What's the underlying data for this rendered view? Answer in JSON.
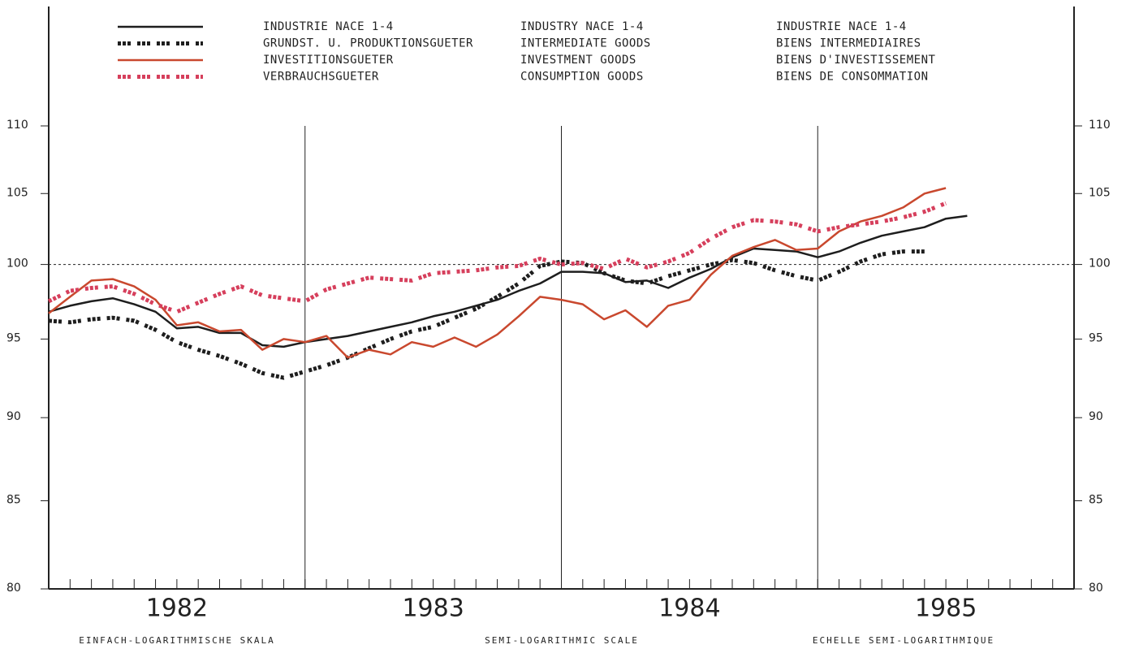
{
  "chart_data": {
    "type": "line",
    "log_scale": true,
    "ylim": [
      80,
      110
    ],
    "yticks": [
      80,
      85,
      90,
      95,
      100,
      105,
      110
    ],
    "xlim": [
      0,
      48
    ],
    "xticks": [
      1,
      2,
      3,
      4,
      5,
      6,
      7,
      8,
      9,
      10,
      11,
      12,
      13,
      14,
      15,
      16,
      17,
      18,
      19,
      20,
      21,
      22,
      23,
      24,
      25,
      26,
      27,
      28,
      29,
      30,
      31,
      32,
      33,
      34,
      35,
      36,
      37,
      38,
      39,
      40,
      41,
      42,
      43,
      44,
      45,
      46,
      47
    ],
    "year_dividers": [
      12,
      24,
      36
    ],
    "year_labels": [
      {
        "value": 6,
        "label": "1982"
      },
      {
        "value": 18,
        "label": "1983"
      },
      {
        "value": 30,
        "label": "1984"
      },
      {
        "value": 42,
        "label": "1985"
      }
    ],
    "reference_line": 100,
    "footer": [
      "EINFACH-LOGARITHMISCHE SKALA",
      "SEMI-LOGARITHMIC SCALE",
      "ECHELLE SEMI-LOGARITHMIQUE"
    ],
    "series": [
      {
        "name": "INDUSTRIE NACE 1-4",
        "name_en": "INDUSTRY NACE 1-4",
        "name_fr": "INDUSTRIE NACE 1-4",
        "color": "#1e1e1e",
        "dash": false,
        "values": [
          96.8,
          97.2,
          97.5,
          97.7,
          97.3,
          96.8,
          95.7,
          95.8,
          95.4,
          95.4,
          94.6,
          94.5,
          94.8,
          95.0,
          95.2,
          95.5,
          95.8,
          96.1,
          96.5,
          96.8,
          97.2,
          97.6,
          98.2,
          98.7,
          99.5,
          99.5,
          99.4,
          98.8,
          98.9,
          98.4,
          99.1,
          99.7,
          100.5,
          101.1,
          101.0,
          100.9,
          100.5,
          100.9,
          101.5,
          102.0,
          102.3,
          102.6,
          103.2,
          103.4
        ]
      },
      {
        "name": "GRUNDST. U. PRODUKTIONSGUETER",
        "name_en": "INTERMEDIATE GOODS",
        "name_fr": "BIENS INTERMEDIAIRES",
        "color": "#1e1e1e",
        "dash": true,
        "values": [
          96.2,
          96.1,
          96.3,
          96.4,
          96.2,
          95.6,
          94.8,
          94.3,
          93.9,
          93.4,
          92.8,
          92.5,
          92.9,
          93.3,
          93.8,
          94.4,
          95.0,
          95.5,
          95.8,
          96.4,
          97.0,
          97.8,
          98.7,
          99.9,
          100.2,
          100.1,
          99.4,
          98.9,
          98.7,
          99.2,
          99.6,
          100.0,
          100.3,
          100.1,
          99.6,
          99.2,
          98.9,
          99.5,
          100.2,
          100.7,
          100.9,
          100.9
        ]
      },
      {
        "name": "INVESTITIONSGUETER",
        "name_en": "INVESTMENT GOODS",
        "name_fr": "BIENS D'INVESTISSEMENT",
        "color": "#c9482e",
        "dash": false,
        "values": [
          96.7,
          97.8,
          98.9,
          99.0,
          98.5,
          97.6,
          95.9,
          96.1,
          95.5,
          95.6,
          94.3,
          95.0,
          94.8,
          95.2,
          93.8,
          94.3,
          94.0,
          94.8,
          94.5,
          95.1,
          94.5,
          95.3,
          96.5,
          97.8,
          97.6,
          97.3,
          96.3,
          96.9,
          95.8,
          97.2,
          97.6,
          99.3,
          100.6,
          101.2,
          101.7,
          101.0,
          101.1,
          102.3,
          103.0,
          103.4,
          104.0,
          105.0,
          105.4
        ]
      },
      {
        "name": "VERBRAUCHSGUETER",
        "name_en": "CONSUMPTION GOODS",
        "name_fr": "BIENS DE CONSOMMATION",
        "color": "#d63f5c",
        "dash": true,
        "values": [
          97.5,
          98.2,
          98.4,
          98.5,
          98.0,
          97.3,
          96.8,
          97.4,
          98.0,
          98.5,
          97.9,
          97.7,
          97.5,
          98.3,
          98.7,
          99.1,
          99.0,
          98.9,
          99.4,
          99.5,
          99.6,
          99.8,
          99.9,
          100.4,
          100.0,
          100.1,
          99.7,
          100.4,
          99.8,
          100.2,
          100.8,
          101.8,
          102.6,
          103.1,
          103.0,
          102.8,
          102.3,
          102.6,
          102.8,
          103.0,
          103.3,
          103.7,
          104.3
        ]
      }
    ]
  }
}
